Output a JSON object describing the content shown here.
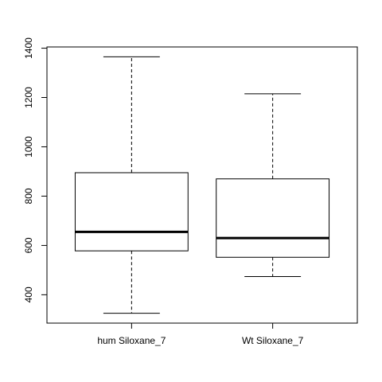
{
  "chart_data": {
    "type": "box",
    "categories": [
      "hum Siloxane_7",
      "Wt Siloxane_7"
    ],
    "boxes": [
      {
        "category": "hum Siloxane_7",
        "min": 325,
        "q1": 578,
        "median": 655,
        "q3": 895,
        "max": 1365
      },
      {
        "category": "Wt Siloxane_7",
        "min": 474,
        "q1": 552,
        "median": 630,
        "q3": 870,
        "max": 1215
      }
    ],
    "title": "",
    "xlabel": "",
    "ylabel": "",
    "ylim": [
      285,
      1405
    ],
    "yticks": [
      400,
      600,
      800,
      1000,
      1200,
      1400
    ],
    "grid": false,
    "legend": "none",
    "colors": {
      "stroke": "#000000",
      "box_fill": "#ffffff",
      "background": "#ffffff"
    }
  }
}
